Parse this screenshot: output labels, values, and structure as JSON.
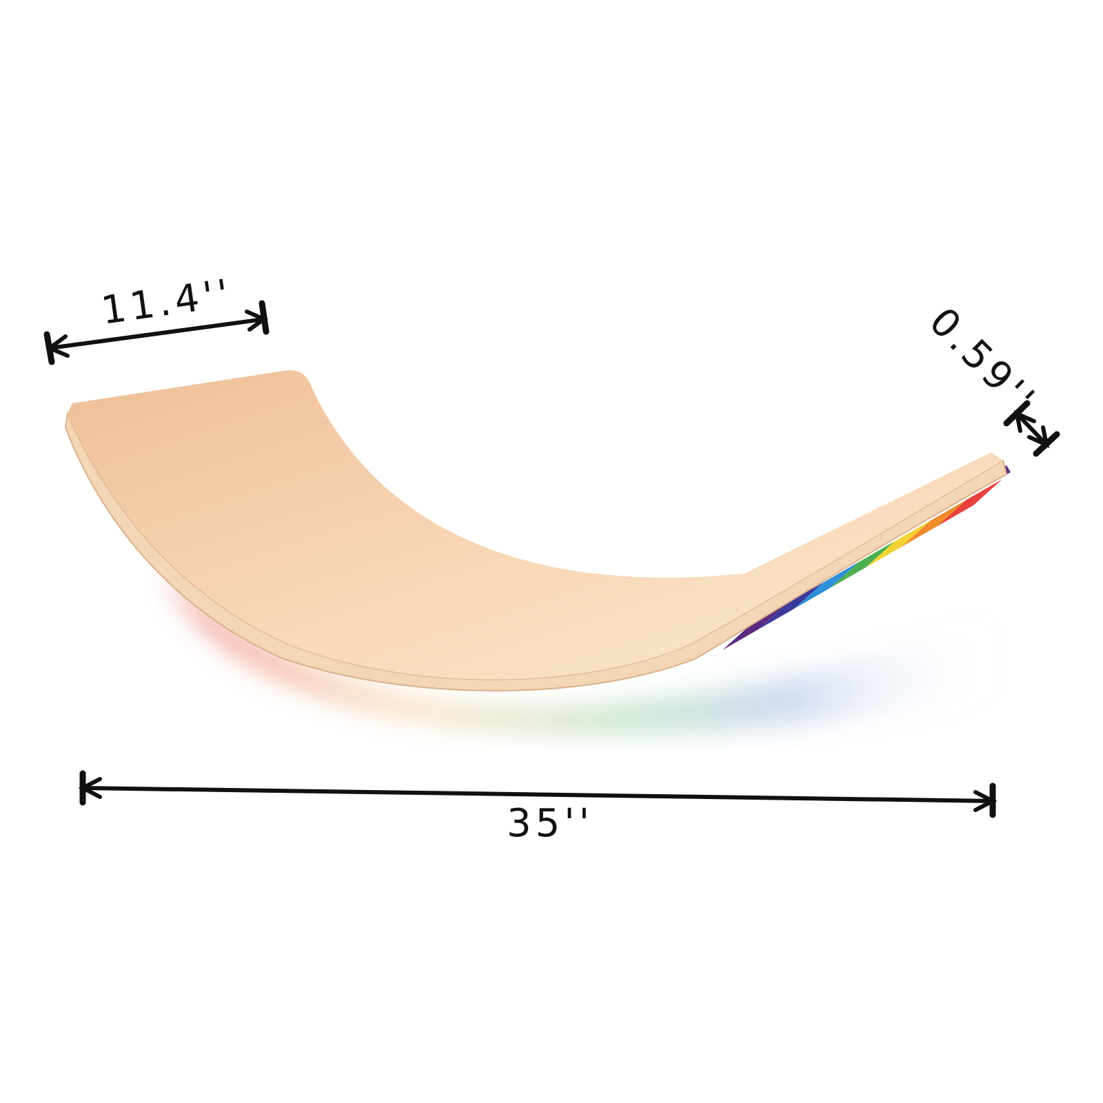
{
  "product": {
    "name_icon": "curved-wooden-balance-board",
    "colors": {
      "wood": "#f2c9a4",
      "wood_light": "#fbe6cc",
      "edge": "#f5d9b8",
      "rainbow": [
        "#e8413c",
        "#f08a2a",
        "#f4d232",
        "#4caf50",
        "#2f8fd8",
        "#3a3a9a",
        "#5a2a82"
      ]
    }
  },
  "dimensions": {
    "width_label": "11.4''",
    "thickness_label": "0.59''",
    "length_label": "35''",
    "line_color": "#111111"
  }
}
